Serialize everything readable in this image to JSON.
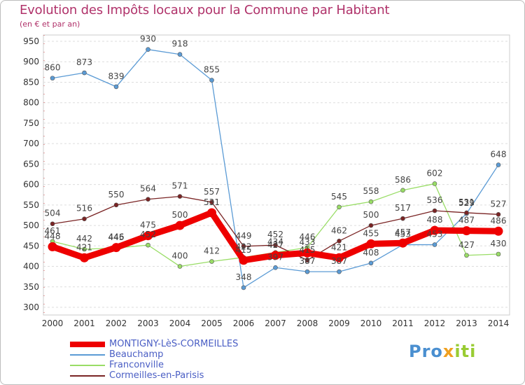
{
  "title": "Evolution des Impôts locaux pour la Commune par Habitant",
  "subtitle": "(en € et par an)",
  "logo": {
    "part1": "Pro",
    "part2": "x",
    "part3": "iti"
  },
  "chart_data": {
    "type": "line",
    "title": "Evolution des Impôts locaux pour la Commune par Habitant",
    "ylabel": "(en € et par an)",
    "xlabel": "",
    "ylim": [
      300,
      950
    ],
    "yticks": [
      300,
      350,
      400,
      450,
      500,
      550,
      600,
      650,
      700,
      750,
      800,
      850,
      900,
      950
    ],
    "categories": [
      "2000",
      "2001",
      "2002",
      "2003",
      "2004",
      "2005",
      "2006",
      "2007",
      "2008",
      "2009",
      "2010",
      "2011",
      "2012",
      "2013",
      "2014"
    ],
    "grid": "horizontal",
    "legend": "bottom-left",
    "series": [
      {
        "name": "MONTIGNY-LèS-CORMEILLES",
        "color": "#ee0000",
        "values": [
          448,
          421,
          446,
          475,
          500,
          531,
          415,
          427,
          433,
          421,
          455,
          457,
          488,
          487,
          486
        ]
      },
      {
        "name": "Beauchamp",
        "color": "#5b9bd5",
        "values": [
          860,
          873,
          839,
          930,
          918,
          855,
          348,
          397,
          387,
          387,
          408,
          453,
          453,
          529,
          648
        ]
      },
      {
        "name": "Franconville",
        "color": "#99dd66",
        "values": [
          461,
          442,
          445,
          452,
          400,
          412,
          422,
          434,
          446,
          545,
          558,
          586,
          602,
          427,
          430
        ]
      },
      {
        "name": "Cormeilles-en-Parisis",
        "color": "#7a2424",
        "values": [
          504,
          516,
          550,
          564,
          571,
          557,
          449,
          452,
          415,
          462,
          500,
          517,
          536,
          531,
          527
        ]
      }
    ]
  }
}
